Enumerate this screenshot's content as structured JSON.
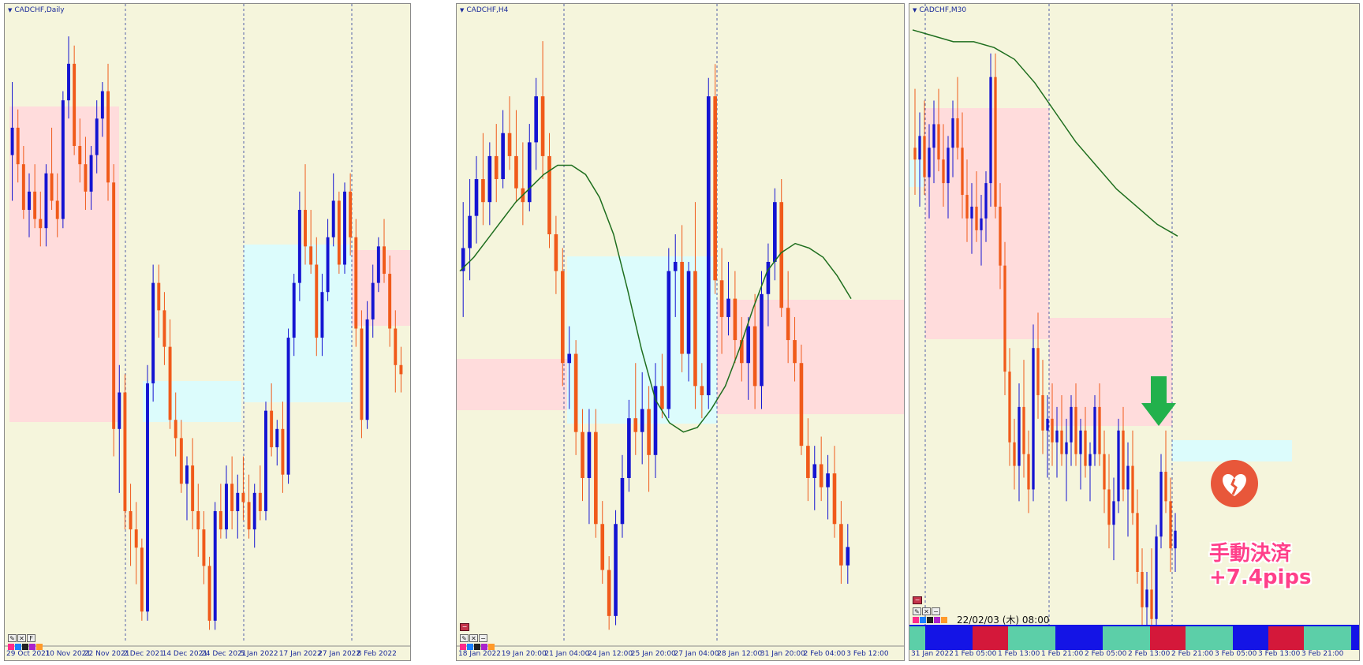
{
  "chart_data": [
    {
      "type": "candlestick",
      "title": "CADCHF,Daily",
      "x_ticks": [
        "29 Oct 2021",
        "10 Nov 2021",
        "22 Nov 2021",
        "2 Dec 2021",
        "14 Dec 2021",
        "24 Dec 2021",
        "5 Jan 2022",
        "17 Jan 2022",
        "27 Jan 2022",
        "8 Feb 2022"
      ],
      "ylim": [
        0.714,
        0.748
      ],
      "candles": [
        [
          0.7405,
          0.7445,
          0.738,
          0.742
        ],
        [
          0.742,
          0.743,
          0.739,
          0.74
        ],
        [
          0.74,
          0.741,
          0.737,
          0.7375
        ],
        [
          0.7375,
          0.7395,
          0.736,
          0.7385
        ],
        [
          0.7385,
          0.74,
          0.7365,
          0.737
        ],
        [
          0.737,
          0.7385,
          0.7355,
          0.7365
        ],
        [
          0.7365,
          0.74,
          0.7355,
          0.7395
        ],
        [
          0.7395,
          0.742,
          0.7375,
          0.738
        ],
        [
          0.738,
          0.7395,
          0.736,
          0.737
        ],
        [
          0.737,
          0.744,
          0.7365,
          0.7435
        ],
        [
          0.7435,
          0.747,
          0.7425,
          0.7455
        ],
        [
          0.7455,
          0.7465,
          0.7405,
          0.741
        ],
        [
          0.741,
          0.7425,
          0.739,
          0.74
        ],
        [
          0.74,
          0.7415,
          0.7375,
          0.7385
        ],
        [
          0.7385,
          0.741,
          0.7375,
          0.7405
        ],
        [
          0.7405,
          0.7435,
          0.7395,
          0.7425
        ],
        [
          0.7425,
          0.7445,
          0.7415,
          0.744
        ],
        [
          0.744,
          0.7455,
          0.738,
          0.739
        ],
        [
          0.739,
          0.74,
          0.724,
          0.7255
        ],
        [
          0.7255,
          0.729,
          0.722,
          0.7275
        ],
        [
          0.7275,
          0.7285,
          0.72,
          0.721
        ],
        [
          0.721,
          0.7225,
          0.718,
          0.72
        ],
        [
          0.72,
          0.7215,
          0.717,
          0.719
        ],
        [
          0.719,
          0.7195,
          0.715,
          0.7155
        ],
        [
          0.7155,
          0.729,
          0.715,
          0.728
        ],
        [
          0.728,
          0.7345,
          0.727,
          0.7335
        ],
        [
          0.7335,
          0.7345,
          0.7305,
          0.732
        ],
        [
          0.732,
          0.733,
          0.729,
          0.73
        ],
        [
          0.73,
          0.7315,
          0.7255,
          0.726
        ],
        [
          0.726,
          0.7275,
          0.724,
          0.725
        ],
        [
          0.725,
          0.726,
          0.722,
          0.7225
        ],
        [
          0.7225,
          0.724,
          0.7205,
          0.7235
        ],
        [
          0.7235,
          0.725,
          0.72,
          0.721
        ],
        [
          0.721,
          0.7225,
          0.7185,
          0.72
        ],
        [
          0.72,
          0.721,
          0.717,
          0.718
        ],
        [
          0.718,
          0.7185,
          0.7145,
          0.715
        ],
        [
          0.715,
          0.7215,
          0.7145,
          0.721
        ],
        [
          0.721,
          0.7225,
          0.7195,
          0.72
        ],
        [
          0.72,
          0.7235,
          0.7195,
          0.7225
        ],
        [
          0.7225,
          0.724,
          0.72,
          0.721
        ],
        [
          0.721,
          0.723,
          0.7195,
          0.722
        ],
        [
          0.722,
          0.724,
          0.7205,
          0.7215
        ],
        [
          0.7215,
          0.723,
          0.7195,
          0.72
        ],
        [
          0.72,
          0.7225,
          0.719,
          0.722
        ],
        [
          0.722,
          0.7235,
          0.7205,
          0.721
        ],
        [
          0.721,
          0.727,
          0.7205,
          0.7265
        ],
        [
          0.7265,
          0.728,
          0.724,
          0.7245
        ],
        [
          0.7245,
          0.726,
          0.7235,
          0.7255
        ],
        [
          0.7255,
          0.727,
          0.722,
          0.723
        ],
        [
          0.723,
          0.731,
          0.7225,
          0.7305
        ],
        [
          0.7305,
          0.734,
          0.7295,
          0.7335
        ],
        [
          0.7335,
          0.7385,
          0.7325,
          0.7375
        ],
        [
          0.7375,
          0.74,
          0.7345,
          0.7355
        ],
        [
          0.7355,
          0.7375,
          0.734,
          0.7345
        ],
        [
          0.7345,
          0.736,
          0.7295,
          0.7305
        ],
        [
          0.7305,
          0.734,
          0.7295,
          0.733
        ],
        [
          0.733,
          0.737,
          0.7325,
          0.736
        ],
        [
          0.736,
          0.7395,
          0.7355,
          0.738
        ],
        [
          0.738,
          0.7385,
          0.734,
          0.7345
        ],
        [
          0.7345,
          0.739,
          0.734,
          0.7385
        ],
        [
          0.7385,
          0.7395,
          0.735,
          0.736
        ],
        [
          0.736,
          0.737,
          0.73,
          0.731
        ],
        [
          0.731,
          0.732,
          0.725,
          0.726
        ],
        [
          0.726,
          0.7325,
          0.7255,
          0.7315
        ],
        [
          0.7315,
          0.7345,
          0.7305,
          0.7335
        ],
        [
          0.7335,
          0.736,
          0.733,
          0.7355
        ],
        [
          0.7355,
          0.737,
          0.7335,
          0.734
        ],
        [
          0.734,
          0.735,
          0.73,
          0.731
        ],
        [
          0.731,
          0.732,
          0.7275,
          0.729
        ],
        [
          0.729,
          0.73,
          0.7275,
          0.7285
        ]
      ]
    },
    {
      "type": "candlestick",
      "title": "CADCHF,H4",
      "x_ticks": [
        "18 Jan 2022",
        "19 Jan 20:00",
        "21 Jan 04:00",
        "24 Jan 12:00",
        "25 Jan 20:00",
        "27 Jan 04:00",
        "28 Jan 12:00",
        "31 Jan 20:00",
        "2 Feb 04:00",
        "3 Feb 12:00"
      ],
      "ylim": [
        0.725,
        0.7385
      ],
      "candles": [
        [
          0.733,
          0.7345,
          0.732,
          0.7335
        ],
        [
          0.7335,
          0.735,
          0.7328,
          0.7342
        ],
        [
          0.7342,
          0.7355,
          0.7336,
          0.735
        ],
        [
          0.735,
          0.736,
          0.734,
          0.7345
        ],
        [
          0.7345,
          0.7358,
          0.734,
          0.7355
        ],
        [
          0.7355,
          0.7362,
          0.7345,
          0.735
        ],
        [
          0.735,
          0.7365,
          0.7348,
          0.736
        ],
        [
          0.736,
          0.7368,
          0.7352,
          0.7355
        ],
        [
          0.7355,
          0.7365,
          0.7345,
          0.7348
        ],
        [
          0.7348,
          0.7358,
          0.734,
          0.7345
        ],
        [
          0.7345,
          0.7362,
          0.7343,
          0.7358
        ],
        [
          0.7358,
          0.7372,
          0.7352,
          0.7368
        ],
        [
          0.7368,
          0.738,
          0.735,
          0.7355
        ],
        [
          0.7355,
          0.736,
          0.7335,
          0.7338
        ],
        [
          0.7338,
          0.7342,
          0.7325,
          0.733
        ],
        [
          0.733,
          0.7335,
          0.7305,
          0.731
        ],
        [
          0.731,
          0.7318,
          0.73,
          0.7312
        ],
        [
          0.7312,
          0.7315,
          0.729,
          0.7295
        ],
        [
          0.7295,
          0.73,
          0.728,
          0.7285
        ],
        [
          0.7285,
          0.73,
          0.7275,
          0.7295
        ],
        [
          0.7295,
          0.73,
          0.7272,
          0.7275
        ],
        [
          0.7275,
          0.728,
          0.7262,
          0.7265
        ],
        [
          0.7265,
          0.7268,
          0.7252,
          0.7255
        ],
        [
          0.7255,
          0.7278,
          0.7253,
          0.7275
        ],
        [
          0.7275,
          0.729,
          0.7272,
          0.7285
        ],
        [
          0.7285,
          0.7302,
          0.7282,
          0.7298
        ],
        [
          0.7298,
          0.731,
          0.729,
          0.7295
        ],
        [
          0.7295,
          0.7308,
          0.7288,
          0.73
        ],
        [
          0.73,
          0.7305,
          0.7282,
          0.729
        ],
        [
          0.729,
          0.731,
          0.7285,
          0.7305
        ],
        [
          0.7305,
          0.7312,
          0.7298,
          0.73
        ],
        [
          0.73,
          0.7335,
          0.7298,
          0.733
        ],
        [
          0.733,
          0.7338,
          0.732,
          0.7332
        ],
        [
          0.7332,
          0.734,
          0.7308,
          0.7312
        ],
        [
          0.7312,
          0.7332,
          0.7306,
          0.733
        ],
        [
          0.733,
          0.7345,
          0.73,
          0.7305
        ],
        [
          0.7305,
          0.731,
          0.7298,
          0.7303
        ],
        [
          0.7303,
          0.7372,
          0.73,
          0.7368
        ],
        [
          0.7368,
          0.7375,
          0.7325,
          0.7328
        ],
        [
          0.7328,
          0.7335,
          0.7312,
          0.732
        ],
        [
          0.732,
          0.7332,
          0.7316,
          0.7324
        ],
        [
          0.7324,
          0.733,
          0.731,
          0.7315
        ],
        [
          0.7315,
          0.732,
          0.7306,
          0.731
        ],
        [
          0.731,
          0.732,
          0.7302,
          0.7318
        ],
        [
          0.7318,
          0.7325,
          0.73,
          0.7305
        ],
        [
          0.7305,
          0.733,
          0.73,
          0.7325
        ],
        [
          0.7325,
          0.7336,
          0.7318,
          0.7332
        ],
        [
          0.7332,
          0.7348,
          0.7328,
          0.7345
        ],
        [
          0.7345,
          0.735,
          0.732,
          0.7322
        ],
        [
          0.7322,
          0.733,
          0.731,
          0.7315
        ],
        [
          0.7315,
          0.732,
          0.7306,
          0.731
        ],
        [
          0.731,
          0.7314,
          0.729,
          0.7292
        ],
        [
          0.7292,
          0.7298,
          0.728,
          0.7285
        ],
        [
          0.7285,
          0.7292,
          0.7278,
          0.7288
        ],
        [
          0.7288,
          0.7294,
          0.728,
          0.7283
        ],
        [
          0.7283,
          0.729,
          0.7276,
          0.7286
        ],
        [
          0.7286,
          0.7292,
          0.7272,
          0.7275
        ],
        [
          0.7275,
          0.728,
          0.7262,
          0.7266
        ],
        [
          0.7266,
          0.7275,
          0.7262,
          0.727
        ]
      ],
      "ma": [
        0.733,
        0.7333,
        0.7337,
        0.7341,
        0.7345,
        0.7348,
        0.7351,
        0.7353,
        0.7353,
        0.7351,
        0.7346,
        0.7338,
        0.7326,
        0.7313,
        0.7302,
        0.7297,
        0.7295,
        0.7296,
        0.73,
        0.7305,
        0.7313,
        0.7322,
        0.733,
        0.7334,
        0.7336,
        0.7335,
        0.7333,
        0.7329,
        0.7324
      ]
    },
    {
      "type": "candlestick",
      "title": "CADCHF,M30",
      "x_ticks": [
        "31 Jan 2022",
        "1 Feb 05:00",
        "1 Feb 13:00",
        "1 Feb 21:00",
        "2 Feb 05:00",
        "2 Feb 13:00",
        "2 Feb 21:00",
        "3 Feb 05:00",
        "3 Feb 13:00",
        "3 Feb 21:00"
      ],
      "ylim": [
        0.7258,
        0.7352
      ],
      "candles": [
        [
          0.733,
          0.734,
          0.7322,
          0.7328
        ],
        [
          0.7328,
          0.7336,
          0.732,
          0.7332
        ],
        [
          0.7332,
          0.7338,
          0.7322,
          0.7325
        ],
        [
          0.7325,
          0.7334,
          0.7318,
          0.733
        ],
        [
          0.733,
          0.7338,
          0.7324,
          0.7334
        ],
        [
          0.7334,
          0.734,
          0.7326,
          0.7328
        ],
        [
          0.7328,
          0.7334,
          0.732,
          0.7324
        ],
        [
          0.7324,
          0.7332,
          0.7318,
          0.733
        ],
        [
          0.733,
          0.7338,
          0.7325,
          0.7335
        ],
        [
          0.7335,
          0.7342,
          0.7328,
          0.733
        ],
        [
          0.733,
          0.7336,
          0.7318,
          0.7322
        ],
        [
          0.7322,
          0.7328,
          0.7314,
          0.7318
        ],
        [
          0.7318,
          0.7324,
          0.7312,
          0.732
        ],
        [
          0.732,
          0.7326,
          0.7314,
          0.7316
        ],
        [
          0.7316,
          0.7322,
          0.731,
          0.7318
        ],
        [
          0.7318,
          0.7326,
          0.7314,
          0.7324
        ],
        [
          0.7324,
          0.7346,
          0.732,
          0.7342
        ],
        [
          0.7342,
          0.7346,
          0.7318,
          0.732
        ],
        [
          0.732,
          0.7324,
          0.7306,
          0.731
        ],
        [
          0.731,
          0.7314,
          0.7288,
          0.7292
        ],
        [
          0.7292,
          0.7296,
          0.7276,
          0.728
        ],
        [
          0.728,
          0.7284,
          0.7272,
          0.7276
        ],
        [
          0.7276,
          0.729,
          0.727,
          0.7286
        ],
        [
          0.7286,
          0.7294,
          0.7274,
          0.7278
        ],
        [
          0.7278,
          0.7282,
          0.7268,
          0.7272
        ],
        [
          0.7272,
          0.73,
          0.727,
          0.7296
        ],
        [
          0.7296,
          0.7302,
          0.7284,
          0.7288
        ],
        [
          0.7288,
          0.7294,
          0.7278,
          0.7282
        ],
        [
          0.7282,
          0.7288,
          0.7274,
          0.7284
        ],
        [
          0.7284,
          0.729,
          0.7276,
          0.728
        ],
        [
          0.728,
          0.7286,
          0.7274,
          0.7282
        ],
        [
          0.7282,
          0.7288,
          0.7276,
          0.7278
        ],
        [
          0.7278,
          0.7284,
          0.727,
          0.728
        ],
        [
          0.728,
          0.7288,
          0.7276,
          0.7286
        ],
        [
          0.7286,
          0.729,
          0.7276,
          0.7278
        ],
        [
          0.7278,
          0.7284,
          0.7272,
          0.7282
        ],
        [
          0.7282,
          0.7286,
          0.7274,
          0.7276
        ],
        [
          0.7276,
          0.728,
          0.727,
          0.7278
        ],
        [
          0.7278,
          0.7288,
          0.7276,
          0.7286
        ],
        [
          0.7286,
          0.729,
          0.7276,
          0.7278
        ],
        [
          0.7278,
          0.7282,
          0.7268,
          0.7272
        ],
        [
          0.7272,
          0.7278,
          0.7262,
          0.7266
        ],
        [
          0.7266,
          0.7274,
          0.726,
          0.727
        ],
        [
          0.727,
          0.7284,
          0.7268,
          0.7282
        ],
        [
          0.7282,
          0.7286,
          0.727,
          0.7272
        ],
        [
          0.7272,
          0.728,
          0.7264,
          0.7276
        ],
        [
          0.7276,
          0.7282,
          0.7266,
          0.7268
        ],
        [
          0.7268,
          0.7272,
          0.7256,
          0.7258
        ],
        [
          0.7258,
          0.7262,
          0.7248,
          0.7252
        ],
        [
          0.7252,
          0.7258,
          0.7246,
          0.7255
        ],
        [
          0.7255,
          0.7262,
          0.7248,
          0.725
        ],
        [
          0.725,
          0.7266,
          0.7248,
          0.7264
        ],
        [
          0.7264,
          0.7278,
          0.7262,
          0.7275
        ],
        [
          0.7275,
          0.7282,
          0.7268,
          0.727
        ],
        [
          0.727,
          0.7274,
          0.7258,
          0.7262
        ],
        [
          0.7262,
          0.7268,
          0.7258,
          0.7265
        ]
      ],
      "ma": [
        0.735,
        0.7349,
        0.7348,
        0.7348,
        0.7347,
        0.7345,
        0.7341,
        0.7336,
        0.7331,
        0.7327,
        0.7323,
        0.732,
        0.7317,
        0.7315
      ]
    }
  ],
  "panels": [
    {
      "title": "CADCHF,Daily"
    },
    {
      "title": "CADCHF,H4"
    },
    {
      "title": "CADCHF,M30",
      "datestamp": "22/02/03 (木) 08:00"
    }
  ],
  "annotation": {
    "line1": "手動決済",
    "line2": "+7.4pips"
  },
  "icons": [
    "down-arrow-icon",
    "broken-heart-icon"
  ],
  "colors": {
    "background": "#f5f5dc",
    "bull": "#1414d2",
    "bear": "#f05a1a",
    "ma": "#1e6e1e",
    "zone_pink": "#ffdcdc",
    "zone_cyan": "#dcfcfc",
    "arrow": "#22b14c",
    "annot": "#ff3f8a"
  }
}
